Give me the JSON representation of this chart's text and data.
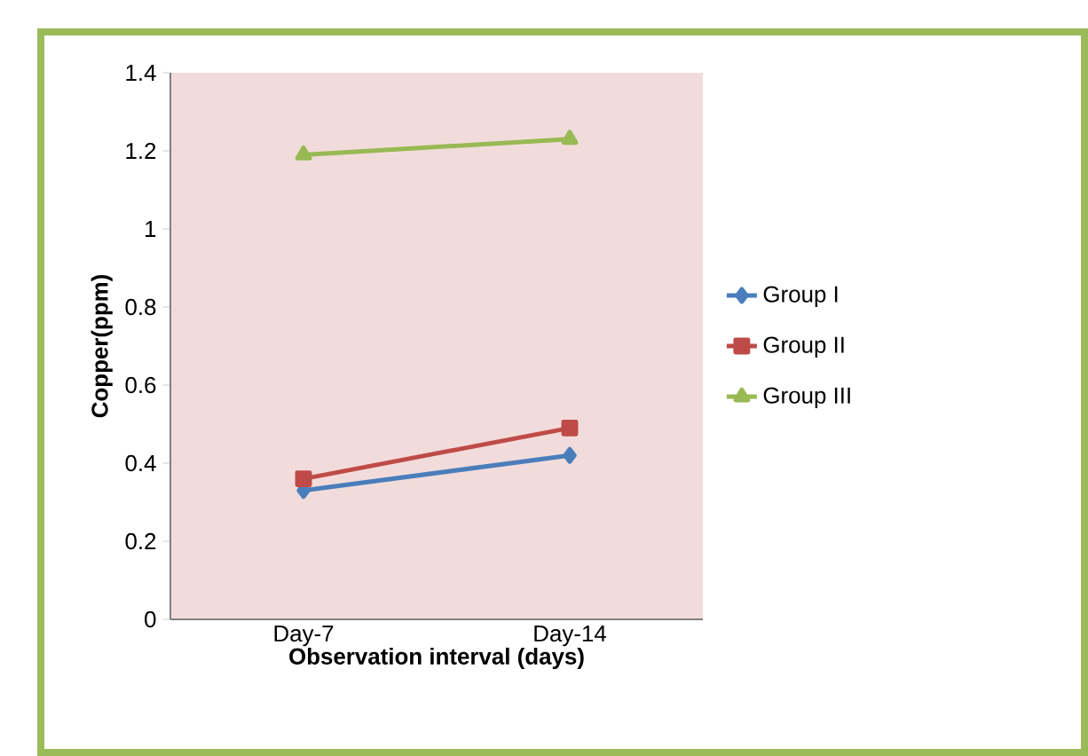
{
  "chart_data": {
    "type": "line",
    "xlabel": "Observation interval (days)",
    "ylabel": "Copper(ppm)",
    "categories": [
      "Day-7",
      "Day-14"
    ],
    "series": [
      {
        "name": "Group I",
        "color": "#4a7ebb",
        "marker": "diamond",
        "values": [
          0.33,
          0.42
        ]
      },
      {
        "name": "Group II",
        "color": "#be4b48",
        "marker": "square",
        "values": [
          0.36,
          0.49
        ]
      },
      {
        "name": "Group III",
        "color": "#98b954",
        "marker": "triangle",
        "values": [
          1.19,
          1.23
        ]
      }
    ],
    "ylim": [
      0,
      1.4
    ],
    "yticks": [
      0,
      0.2,
      0.4,
      0.6,
      0.8,
      1,
      1.2,
      1.4
    ],
    "grid": false,
    "legend": "right"
  }
}
